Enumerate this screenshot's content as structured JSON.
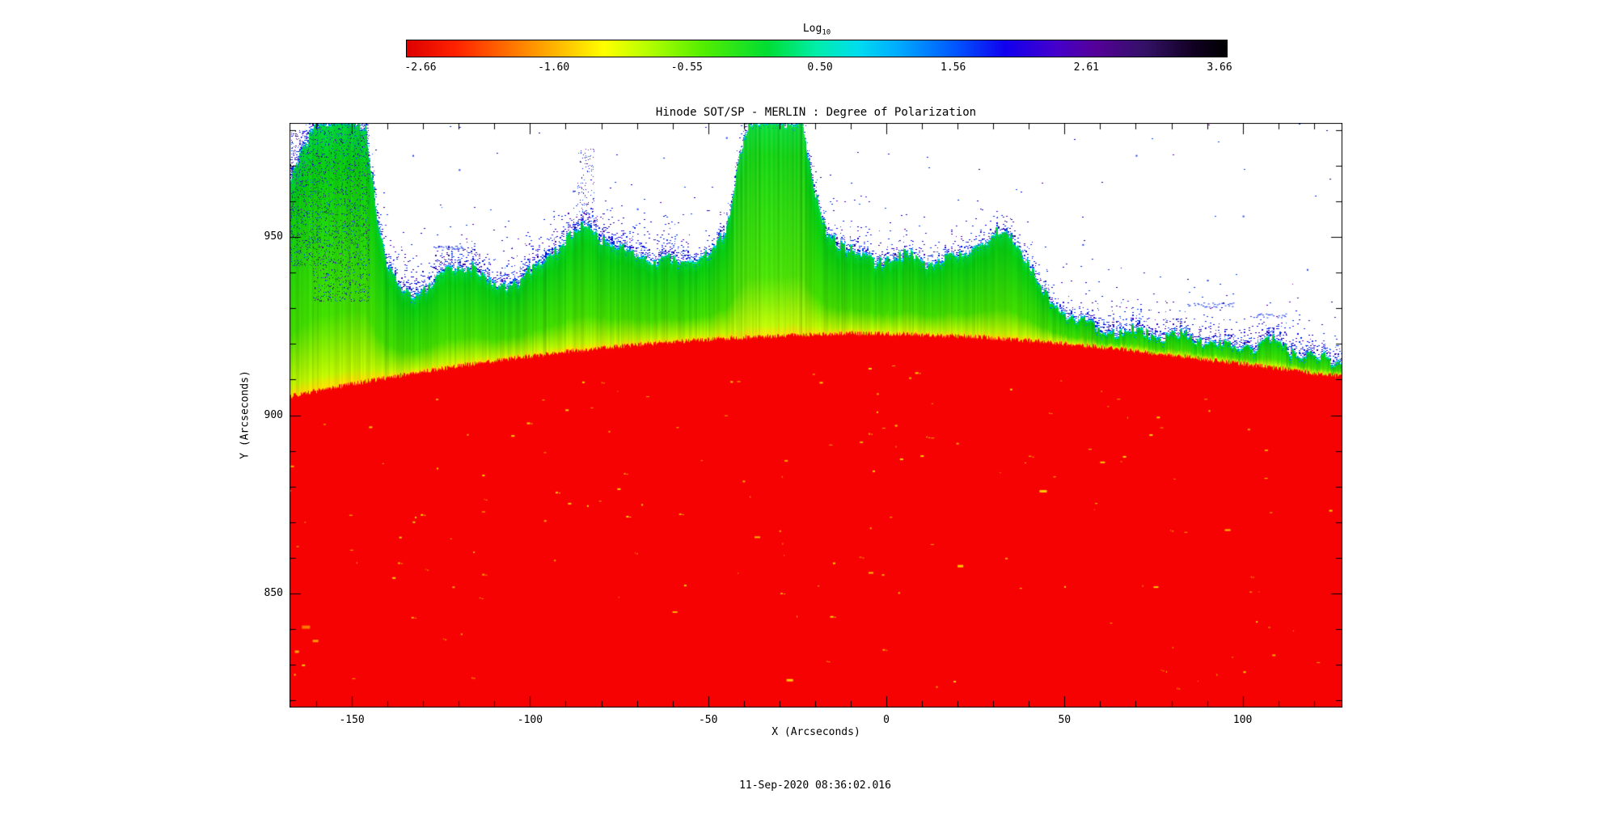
{
  "colorbar": {
    "title": "Log",
    "title_sub": "10",
    "ticks": [
      "-2.66",
      "-1.60",
      "-0.55",
      "0.50",
      "1.56",
      "2.61",
      "3.66"
    ],
    "gradient_stops": [
      "#dd0000 0%",
      "#ff2200 6%",
      "#ff7700 13%",
      "#ffcc00 20%",
      "#ffff00 24%",
      "#bbff00 29%",
      "#55ee00 36%",
      "#00dd33 44%",
      "#00eeaa 50%",
      "#00ddee 55%",
      "#00aaff 60%",
      "#0055ff 67%",
      "#1100ee 73%",
      "#4400cc 79%",
      "#550099 84%",
      "#331166 90%",
      "#110022 96%",
      "#000000 100%"
    ]
  },
  "plot": {
    "title": "Hinode SOT/SP - MERLIN : Degree of Polarization",
    "xlabel": "X (Arcseconds)",
    "ylabel": "Y (Arcseconds)",
    "x_tick_labels": [
      "-150",
      "-100",
      "-50",
      "0",
      "50",
      "100"
    ],
    "y_tick_labels": [
      "850",
      "900",
      "950"
    ]
  },
  "footer": {
    "timestamp": "11-Sep-2020 08:36:02.016"
  },
  "chart_data": {
    "type": "heatmap",
    "title": "Hinode SOT/SP - MERLIN : Degree of Polarization",
    "xlabel": "X (Arcseconds)",
    "ylabel": "Y (Arcseconds)",
    "x_range": [
      -167.5,
      128
    ],
    "y_range": [
      818,
      982
    ],
    "x_major_ticks": [
      -150,
      -100,
      -50,
      0,
      50,
      100
    ],
    "y_major_ticks": [
      850,
      900,
      950
    ],
    "minor_tick_step": 10,
    "colorbar": {
      "label": "Log10",
      "tick_values": [
        -2.66,
        -1.6,
        -0.55,
        0.5,
        1.56,
        2.61,
        3.66
      ],
      "palette": "rainbow red-orange-yellow-green-cyan-blue-purple-black"
    },
    "description": "Solar limb image: saturated red solar disk below the limb arc (~905-923 arcsec), yellow-to-green gradient of decreasing polarization above the limb, noisy cyan/blue/purple speckled boundary against white sky; tall green spicule column near x=-155 and a broad green plume near x=-33 reaching the top of the frame; sparse yellow brightenings inside the red disk.",
    "limb_profile": [
      [
        -167.5,
        905.5
      ],
      [
        -150,
        909
      ],
      [
        -130,
        912.5
      ],
      [
        -110,
        915.5
      ],
      [
        -90,
        918
      ],
      [
        -70,
        920
      ],
      [
        -50,
        921.5
      ],
      [
        -30,
        922.5
      ],
      [
        -10,
        923.2
      ],
      [
        5,
        923
      ],
      [
        25,
        922.2
      ],
      [
        45,
        920.8
      ],
      [
        65,
        918.8
      ],
      [
        85,
        916.5
      ],
      [
        105,
        914
      ],
      [
        128,
        911
      ]
    ],
    "top_boundary_profile": [
      [
        -167.5,
        966
      ],
      [
        -164,
        972
      ],
      [
        -161,
        979
      ],
      [
        -159,
        982
      ],
      [
        -146,
        982
      ],
      [
        -143,
        958
      ],
      [
        -140,
        942
      ],
      [
        -137,
        936
      ],
      [
        -132,
        934
      ],
      [
        -127,
        936
      ],
      [
        -122,
        941
      ],
      [
        -117,
        943
      ],
      [
        -113,
        939
      ],
      [
        -108,
        937
      ],
      [
        -103,
        938
      ],
      [
        -98,
        941
      ],
      [
        -93,
        946
      ],
      [
        -88,
        950
      ],
      [
        -84,
        953
      ],
      [
        -80,
        951
      ],
      [
        -75,
        948
      ],
      [
        -70,
        945
      ],
      [
        -64,
        943
      ],
      [
        -58,
        942
      ],
      [
        -52,
        944
      ],
      [
        -48,
        947
      ],
      [
        -45,
        952
      ],
      [
        -43,
        964
      ],
      [
        -41,
        976
      ],
      [
        -39,
        982
      ],
      [
        -24,
        982
      ],
      [
        -22,
        972
      ],
      [
        -20,
        962
      ],
      [
        -17,
        953
      ],
      [
        -13,
        949
      ],
      [
        -8,
        946
      ],
      [
        -3,
        944
      ],
      [
        2,
        943
      ],
      [
        7,
        944
      ],
      [
        12,
        942
      ],
      [
        17,
        944
      ],
      [
        22,
        946
      ],
      [
        27,
        949
      ],
      [
        31,
        951
      ],
      [
        34,
        952
      ],
      [
        37,
        948
      ],
      [
        40,
        941
      ],
      [
        43,
        935
      ],
      [
        46,
        931
      ],
      [
        50,
        929
      ],
      [
        55,
        927
      ],
      [
        60,
        925
      ],
      [
        66,
        923.5
      ],
      [
        72,
        922.5
      ],
      [
        80,
        922
      ],
      [
        86,
        923
      ],
      [
        92,
        921
      ],
      [
        98,
        919
      ],
      [
        103,
        918.5
      ],
      [
        108,
        920
      ],
      [
        113,
        918.5
      ],
      [
        118,
        917.5
      ],
      [
        123,
        917
      ],
      [
        128,
        916
      ]
    ],
    "plume_x_range": [
      -43,
      -23
    ],
    "streak_x": [
      -140,
      -103,
      -96,
      -62,
      -24,
      -12,
      30,
      58
    ],
    "speckle_rects": [
      {
        "x1": -167.5,
        "x2": -157,
        "y1": 942,
        "y2": 980,
        "density": 0.1
      },
      {
        "x1": -161,
        "x2": -145,
        "y1": 932,
        "y2": 982,
        "density": 0.09
      },
      {
        "x1": -87,
        "x2": -82,
        "y1": 953,
        "y2": 975,
        "density": 0.05
      }
    ],
    "sky_dashes": [
      {
        "x1": 84,
        "x2": 98,
        "y": 931
      },
      {
        "x1": 103,
        "x2": 112,
        "y": 928
      },
      {
        "x1": -126,
        "x2": -119,
        "y": 947
      }
    ],
    "sky_dots": [
      [
        70,
        973
      ],
      [
        -120,
        969
      ],
      [
        -133,
        973
      ],
      [
        -88,
        963
      ],
      [
        -70,
        958
      ],
      [
        100,
        956
      ],
      [
        118,
        941
      ],
      [
        -45,
        978
      ],
      [
        55,
        948
      ],
      [
        90,
        938
      ]
    ],
    "bright_features": [
      {
        "x": -164,
        "y": 841,
        "w": 10,
        "h": 4,
        "color": "#ff7700"
      },
      {
        "x": -161,
        "y": 837,
        "w": 7,
        "h": 3,
        "color": "#ff9900"
      },
      {
        "x": -166,
        "y": 834,
        "w": 5,
        "h": 3,
        "color": "#ffaa00"
      },
      {
        "x": 43,
        "y": 879,
        "w": 9,
        "h": 3,
        "color": "#ffcc00"
      },
      {
        "x": 20,
        "y": 858,
        "w": 7,
        "h": 3,
        "color": "#ffc400"
      },
      {
        "x": -28,
        "y": 826,
        "w": 8,
        "h": 3,
        "color": "#ffcc00"
      },
      {
        "x": 75,
        "y": 852,
        "w": 6,
        "h": 2,
        "color": "#ffc800"
      },
      {
        "x": 95,
        "y": 868,
        "w": 7,
        "h": 2,
        "color": "#ffcc00"
      },
      {
        "x": -60,
        "y": 845,
        "w": 6,
        "h": 2,
        "color": "#ffb400"
      },
      {
        "x": -5,
        "y": 856,
        "w": 6,
        "h": 2,
        "color": "#ffc000"
      },
      {
        "x": -37,
        "y": 866,
        "w": 7,
        "h": 2,
        "color": "#ffbb00"
      },
      {
        "x": 60,
        "y": 887,
        "w": 6,
        "h": 2,
        "color": "#ffcc00"
      }
    ]
  }
}
